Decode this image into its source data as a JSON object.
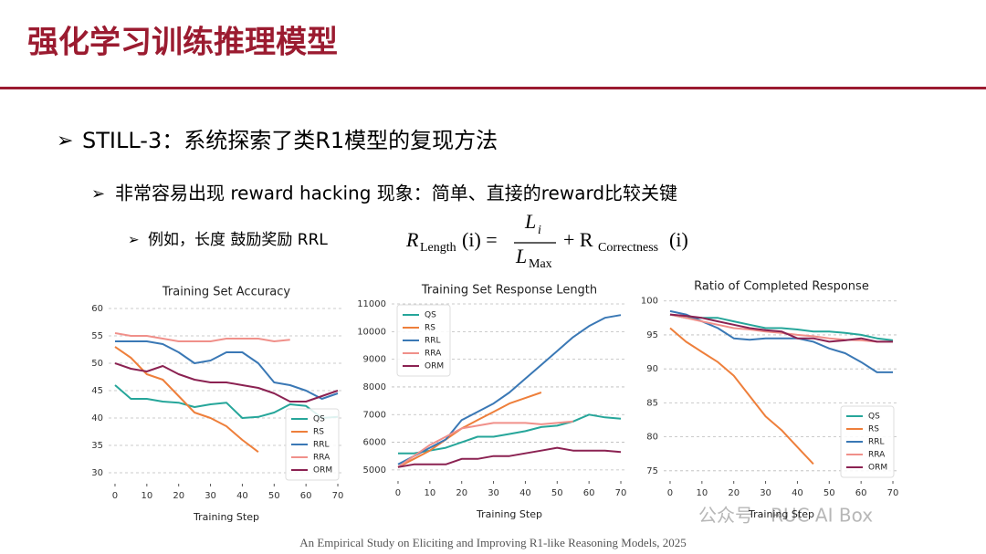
{
  "slide": {
    "title": "强化学习训练推理模型",
    "bullet1": "STILL-3：系统探索了类R1模型的复现方法",
    "bullet2": "非常容易出现 reward hacking 现象：简单、直接的reward比较关键",
    "bullet3": "例如，长度 鼓励奖励 RRL",
    "formula": [
      "R",
      "Length",
      "(i) =",
      "L",
      "i",
      "L",
      "Max",
      "+ R",
      "Correctness",
      "(i)"
    ],
    "footer": "An Empirical Study on Eliciting and Improving R1-like Reasoning Models, 2025",
    "watermark": "公众号 · RUC AI Box"
  },
  "chart_data": [
    {
      "type": "line",
      "title": "Training Set Accuracy",
      "x_label": "Training Step",
      "x": [
        0,
        5,
        10,
        15,
        20,
        25,
        30,
        35,
        40,
        45,
        50,
        55,
        60,
        65,
        70
      ],
      "xlim": [
        -2,
        72
      ],
      "xticks": [
        0,
        10,
        20,
        30,
        40,
        50,
        60,
        70
      ],
      "ylim": [
        28,
        61
      ],
      "yticks": [
        30,
        35,
        40,
        45,
        50,
        55,
        60
      ],
      "grid": true,
      "legend": "lower-right",
      "series": [
        {
          "name": "QS",
          "color": "#26a69a",
          "values": [
            46,
            43.5,
            43.5,
            43,
            42.8,
            42,
            42.5,
            42.8,
            40,
            40.2,
            41,
            42.5,
            42.2,
            40,
            40.2
          ]
        },
        {
          "name": "RS",
          "color": "#ee7f3b",
          "values": [
            53,
            51,
            48,
            47,
            44,
            41,
            40,
            38.5,
            36,
            33.8,
            null,
            null,
            null,
            null,
            null
          ]
        },
        {
          "name": "RRL",
          "color": "#3a78b5",
          "values": [
            54,
            54,
            54,
            53.5,
            52,
            50,
            50.5,
            52,
            52,
            50,
            46.5,
            46,
            45,
            43.5,
            44.5
          ]
        },
        {
          "name": "RRA",
          "color": "#f0908a",
          "values": [
            55.5,
            55,
            55,
            54.5,
            54,
            54,
            54,
            54.5,
            54.5,
            54.5,
            54,
            54.3,
            null,
            null,
            null
          ]
        },
        {
          "name": "ORM",
          "color": "#8b2252",
          "values": [
            50,
            49,
            48.5,
            49.5,
            48,
            47,
            46.5,
            46.5,
            46,
            45.5,
            44.5,
            43,
            43,
            44,
            45
          ]
        }
      ]
    },
    {
      "type": "line",
      "title": "Training Set Response Length",
      "x_label": "Training Step",
      "x": [
        0,
        5,
        10,
        15,
        20,
        25,
        30,
        35,
        40,
        45,
        50,
        55,
        60,
        65,
        70
      ],
      "xlim": [
        -2,
        72
      ],
      "xticks": [
        0,
        10,
        20,
        30,
        40,
        50,
        60,
        70
      ],
      "ylim": [
        4600,
        11100
      ],
      "yticks": [
        5000,
        6000,
        7000,
        8000,
        9000,
        10000,
        11000
      ],
      "grid": true,
      "legend": "upper-left",
      "series": [
        {
          "name": "QS",
          "color": "#26a69a",
          "values": [
            5600,
            5600,
            5700,
            5800,
            6000,
            6200,
            6200,
            6300,
            6400,
            6550,
            6600,
            6750,
            7000,
            6900,
            6850
          ]
        },
        {
          "name": "RS",
          "color": "#ee7f3b",
          "values": [
            5100,
            5400,
            5700,
            6100,
            6500,
            6800,
            7100,
            7400,
            7600,
            7800,
            null,
            null,
            null,
            null,
            null
          ]
        },
        {
          "name": "RRL",
          "color": "#3a78b5",
          "values": [
            5200,
            5500,
            5800,
            6100,
            6800,
            7100,
            7400,
            7800,
            8300,
            8800,
            9300,
            9800,
            10200,
            10500,
            10600
          ]
        },
        {
          "name": "RRA",
          "color": "#f0908a",
          "values": [
            5100,
            5500,
            5900,
            6200,
            6500,
            6600,
            6700,
            6700,
            6700,
            6650,
            6700,
            6750,
            null,
            null,
            null
          ]
        },
        {
          "name": "ORM",
          "color": "#8b2252",
          "values": [
            5100,
            5200,
            5200,
            5200,
            5400,
            5400,
            5500,
            5500,
            5600,
            5700,
            5800,
            5700,
            5700,
            5700,
            5650
          ]
        }
      ]
    },
    {
      "type": "line",
      "title": "Ratio of Completed Response",
      "x_label": "Training Step",
      "x": [
        0,
        5,
        10,
        15,
        20,
        25,
        30,
        35,
        40,
        45,
        50,
        55,
        60,
        65,
        70
      ],
      "xlim": [
        -2,
        72
      ],
      "xticks": [
        0,
        10,
        20,
        30,
        40,
        50,
        60,
        70
      ],
      "ylim": [
        73.5,
        100.5
      ],
      "yticks": [
        75,
        80,
        85,
        90,
        95,
        100
      ],
      "grid": true,
      "legend": "lower-right",
      "series": [
        {
          "name": "QS",
          "color": "#26a69a",
          "values": [
            98,
            97.5,
            97.5,
            97.5,
            97,
            96.5,
            96,
            96,
            95.8,
            95.5,
            95.5,
            95.3,
            95,
            94.5,
            94.2
          ]
        },
        {
          "name": "RS",
          "color": "#ee7f3b",
          "values": [
            96,
            94,
            92.5,
            91,
            89,
            86,
            83,
            81,
            78.5,
            76,
            null,
            null,
            null,
            null,
            null
          ]
        },
        {
          "name": "RRL",
          "color": "#3a78b5",
          "values": [
            98.5,
            98,
            97,
            96,
            94.5,
            94.3,
            94.5,
            94.5,
            94.5,
            94,
            93,
            92.3,
            91,
            89.5,
            89.5
          ]
        },
        {
          "name": "RRA",
          "color": "#f0908a",
          "values": [
            98,
            97.5,
            97,
            96.5,
            96,
            95.8,
            95.5,
            95.3,
            95,
            94.8,
            94.5,
            94.3,
            94.2,
            94,
            94
          ]
        },
        {
          "name": "ORM",
          "color": "#8b2252",
          "values": [
            98,
            97.8,
            97.5,
            97,
            96.5,
            96,
            95.7,
            95.5,
            94.5,
            94.5,
            94,
            94.2,
            94.5,
            94,
            94
          ]
        }
      ]
    }
  ]
}
